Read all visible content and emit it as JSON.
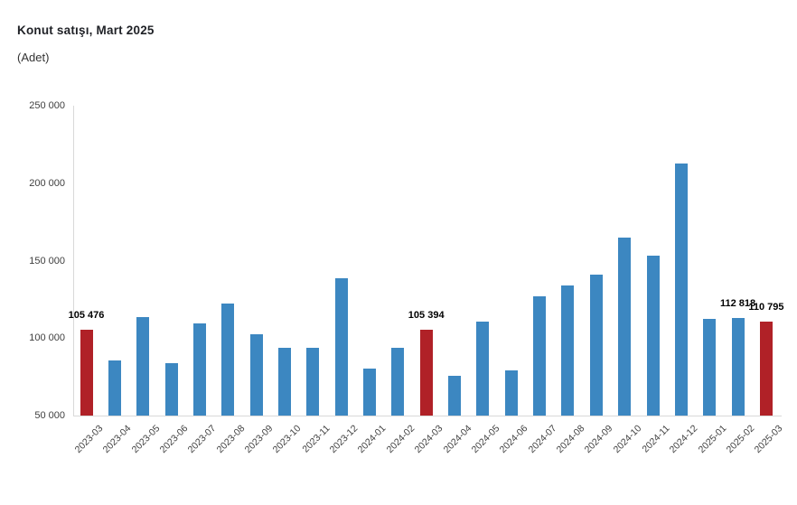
{
  "header": {
    "title": "Konut satışı, Mart 2025",
    "subtitle": "(Adet)"
  },
  "colors": {
    "bar_default": "#3c87c1",
    "bar_highlight": "#b02127",
    "axis_line": "#d9d9d9",
    "tick_text": "#3f3f3f",
    "data_label_text": "#000000"
  },
  "chart_data": {
    "type": "bar",
    "title": "Konut satışı, Mart 2025",
    "xlabel": "",
    "ylabel": "Adet",
    "ylim": [
      50000,
      250000
    ],
    "ytick_interval": 50000,
    "ytick_labels": [
      "250 000",
      "200 000",
      "150 000",
      "100 000",
      "50 000"
    ],
    "ytick_values": [
      250000,
      200000,
      150000,
      100000,
      50000
    ],
    "grid": false,
    "legend": "none",
    "categories": [
      "2023-03",
      "2023-04",
      "2023-05",
      "2023-06",
      "2023-07",
      "2023-08",
      "2023-09",
      "2023-10",
      "2023-11",
      "2023-12",
      "2024-01",
      "2024-02",
      "2024-03",
      "2024-04",
      "2024-05",
      "2024-06",
      "2024-07",
      "2024-08",
      "2024-09",
      "2024-10",
      "2024-11",
      "2024-12",
      "2025-01",
      "2025-02",
      "2025-03"
    ],
    "values": [
      105476,
      85652,
      113317,
      83636,
      109548,
      122091,
      102656,
      93761,
      93514,
      138577,
      80308,
      93902,
      105394,
      75569,
      110588,
      79313,
      127088,
      134155,
      140919,
      165138,
      153014,
      212637,
      112173,
      112818,
      110795
    ],
    "highlighted_categories": [
      "2023-03",
      "2024-03",
      "2025-03"
    ],
    "data_labels": [
      {
        "category": "2023-03",
        "text": "105 476"
      },
      {
        "category": "2024-03",
        "text": "105 394"
      },
      {
        "category": "2025-02",
        "text": "112 818"
      },
      {
        "category": "2025-03",
        "text": "110 795"
      }
    ]
  }
}
